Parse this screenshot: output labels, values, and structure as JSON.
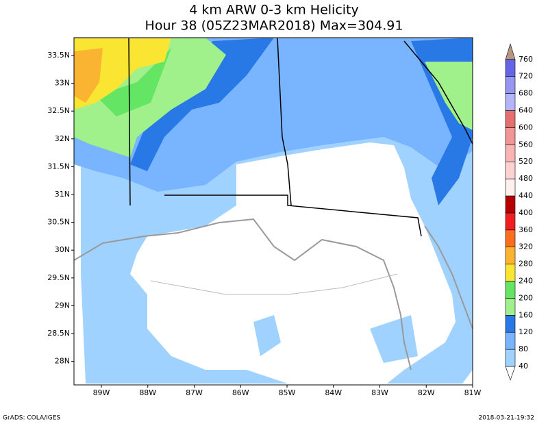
{
  "map": {
    "title": "4 km ARW 0-3 km Helicity",
    "subtitle": "Hour 38 (05Z23MAR2018) Max=304.91",
    "lat_labels": [
      "33.5N",
      "33N",
      "32.5N",
      "32N",
      "31.5N",
      "31N",
      "30.5N",
      "30N",
      "29.5N",
      "29N",
      "28.5N",
      "28N"
    ],
    "lon_labels": [
      "89W",
      "88W",
      "87W",
      "86W",
      "85W",
      "84W",
      "83W",
      "82W",
      "81W"
    ],
    "colorbar": {
      "levels": [
        40,
        80,
        120,
        160,
        200,
        240,
        280,
        320,
        360,
        400,
        440,
        480,
        520,
        560,
        600,
        640,
        680,
        720,
        760
      ],
      "colors": [
        "#ffffff",
        "#a0d2ff",
        "#78b4ff",
        "#2878e6",
        "#a0f08c",
        "#64e664",
        "#fae632",
        "#fab432",
        "#fa6e1e",
        "#f01e1e",
        "#b40000",
        "#fff0f0",
        "#ffd2d2",
        "#fab4b4",
        "#f09696",
        "#e66e6e",
        "#b4b4fa",
        "#9696f0",
        "#6464e6",
        "#b49682"
      ]
    },
    "footer_left": "GrADS: COLA/IGES",
    "footer_right": "2018-03-21-19:32"
  }
}
